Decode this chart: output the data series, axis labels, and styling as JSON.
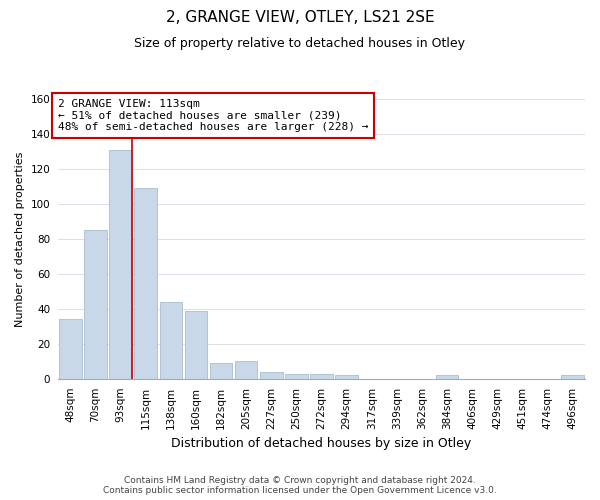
{
  "title": "2, GRANGE VIEW, OTLEY, LS21 2SE",
  "subtitle": "Size of property relative to detached houses in Otley",
  "xlabel": "Distribution of detached houses by size in Otley",
  "ylabel": "Number of detached properties",
  "bar_color": "#c8d8e8",
  "bar_edge_color": "#a8bece",
  "categories": [
    "48sqm",
    "70sqm",
    "93sqm",
    "115sqm",
    "138sqm",
    "160sqm",
    "182sqm",
    "205sqm",
    "227sqm",
    "250sqm",
    "272sqm",
    "294sqm",
    "317sqm",
    "339sqm",
    "362sqm",
    "384sqm",
    "406sqm",
    "429sqm",
    "451sqm",
    "474sqm",
    "496sqm"
  ],
  "values": [
    34,
    85,
    131,
    109,
    44,
    39,
    9,
    10,
    4,
    3,
    3,
    2,
    0,
    0,
    0,
    2,
    0,
    0,
    0,
    0,
    2
  ],
  "ylim": [
    0,
    160
  ],
  "yticks": [
    0,
    20,
    40,
    60,
    80,
    100,
    120,
    140,
    160
  ],
  "marker_label": "2 GRANGE VIEW: 113sqm",
  "annotation_line1": "← 51% of detached houses are smaller (239)",
  "annotation_line2": "48% of semi-detached houses are larger (228) →",
  "annotation_box_color": "#ffffff",
  "annotation_box_edge_color": "#cc0000",
  "marker_line_color": "#cc0000",
  "footer_line1": "Contains HM Land Registry data © Crown copyright and database right 2024.",
  "footer_line2": "Contains public sector information licensed under the Open Government Licence v3.0.",
  "grid_color": "#d8e0e8",
  "background_color": "#ffffff",
  "title_fontsize": 11,
  "subtitle_fontsize": 9,
  "ylabel_fontsize": 8,
  "xlabel_fontsize": 9,
  "tick_fontsize": 7.5,
  "annotation_fontsize": 8,
  "footer_fontsize": 6.5
}
